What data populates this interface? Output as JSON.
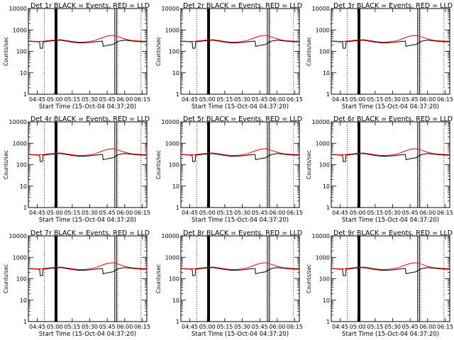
{
  "chart_data": {
    "type": "line",
    "ylabel": "Counts/sec",
    "ylim": [
      1,
      10000
    ],
    "yscale": "log",
    "y_ticks": [
      "1",
      "10",
      "100",
      "1000",
      "10000"
    ],
    "xlim": [
      "04:37:20",
      "06:19:00"
    ],
    "x_ticks": [
      "04:45",
      "05:00",
      "05:15",
      "05:30",
      "05:45",
      "06:00",
      "06:15"
    ],
    "colors": {
      "events": "#000000",
      "lld": "#ff0000"
    },
    "marker_lines": [
      {
        "time": "04:51:00",
        "style": "dotted"
      },
      {
        "time": "05:00:30",
        "style": "solid-thick"
      },
      {
        "time": "05:01:40",
        "style": "solid-thick"
      },
      {
        "time": "05:51:30",
        "style": "solid"
      },
      {
        "time": "05:53:00",
        "style": "solid"
      },
      {
        "time": "05:54:00",
        "style": "dotted"
      },
      {
        "time": "06:14:00",
        "style": "dotted"
      }
    ],
    "panels": [
      {
        "title": "Det 1r BLACK = Events, RED = LLD",
        "xlabel": "Start Time (15-Oct-04 04:37:20)"
      },
      {
        "title": "Det 2r BLACK = Events, RED = LLD",
        "xlabel": "Start Time (15-Oct-04 04:37:20)"
      },
      {
        "title": "Det 3r BLACK = Events, RED = LLD",
        "xlabel": "Start Time (15-Oct-04 04:37:20)"
      },
      {
        "title": "Det 4r BLACK = Events, RED = LLD",
        "xlabel": "Start Time (15-Oct-04 04:37:20)"
      },
      {
        "title": "Det 5r BLACK = Events, RED = LLD",
        "xlabel": "Start Time (15-Oct-04 04:37:20)"
      },
      {
        "title": "Det 6r BLACK = Events, RED = LLD",
        "xlabel": "Start Time (15-Oct-04 04:37:20)"
      },
      {
        "title": "Det 7r BLACK = Events, RED = LLD",
        "xlabel": "Start Time (15-Oct-04 04:37:20)"
      },
      {
        "title": "Det 8r BLACK = Events, RED = LLD",
        "xlabel": "Start Time (15-Oct-04 04:37:20)"
      },
      {
        "title": "Det 9r BLACK = Events, RED = LLD",
        "xlabel": "Start Time (15-Oct-04 04:37:20)"
      }
    ],
    "series": [
      {
        "color": "#000000",
        "x": [
          "04:37:20",
          "04:40:00",
          "04:45:00",
          "04:47:00",
          "04:47:30",
          "04:49:30",
          "04:50:00",
          "04:55:00",
          "05:00:00",
          "05:05:00",
          "05:10:00",
          "05:15:00",
          "05:20:00",
          "05:25:00",
          "05:30:00",
          "05:35:00",
          "05:40:00",
          "05:41:00",
          "05:41:30",
          "05:45:00",
          "05:50:00",
          "05:51:00",
          "05:55:00",
          "06:00:00",
          "06:05:00",
          "06:10:00",
          "06:15:00",
          "06:19:00"
        ],
        "y": [
          300,
          290,
          280,
          280,
          140,
          140,
          280,
          300,
          320,
          330,
          300,
          270,
          250,
          250,
          260,
          280,
          300,
          300,
          170,
          190,
          210,
          230,
          300,
          330,
          310,
          290,
          280,
          280
        ]
      },
      {
        "color": "#ff0000",
        "x": [
          "04:37:20",
          "04:40:00",
          "04:45:00",
          "04:50:00",
          "04:55:00",
          "05:00:00",
          "05:05:00",
          "05:10:00",
          "05:15:00",
          "05:20:00",
          "05:25:00",
          "05:30:00",
          "05:35:00",
          "05:40:00",
          "05:45:00",
          "05:50:00",
          "05:55:00",
          "06:00:00",
          "06:05:00",
          "06:10:00",
          "06:15:00",
          "06:19:00"
        ],
        "y": [
          310,
          300,
          290,
          300,
          320,
          340,
          350,
          320,
          290,
          270,
          270,
          290,
          330,
          420,
          520,
          560,
          470,
          380,
          330,
          310,
          300,
          300
        ]
      }
    ]
  }
}
